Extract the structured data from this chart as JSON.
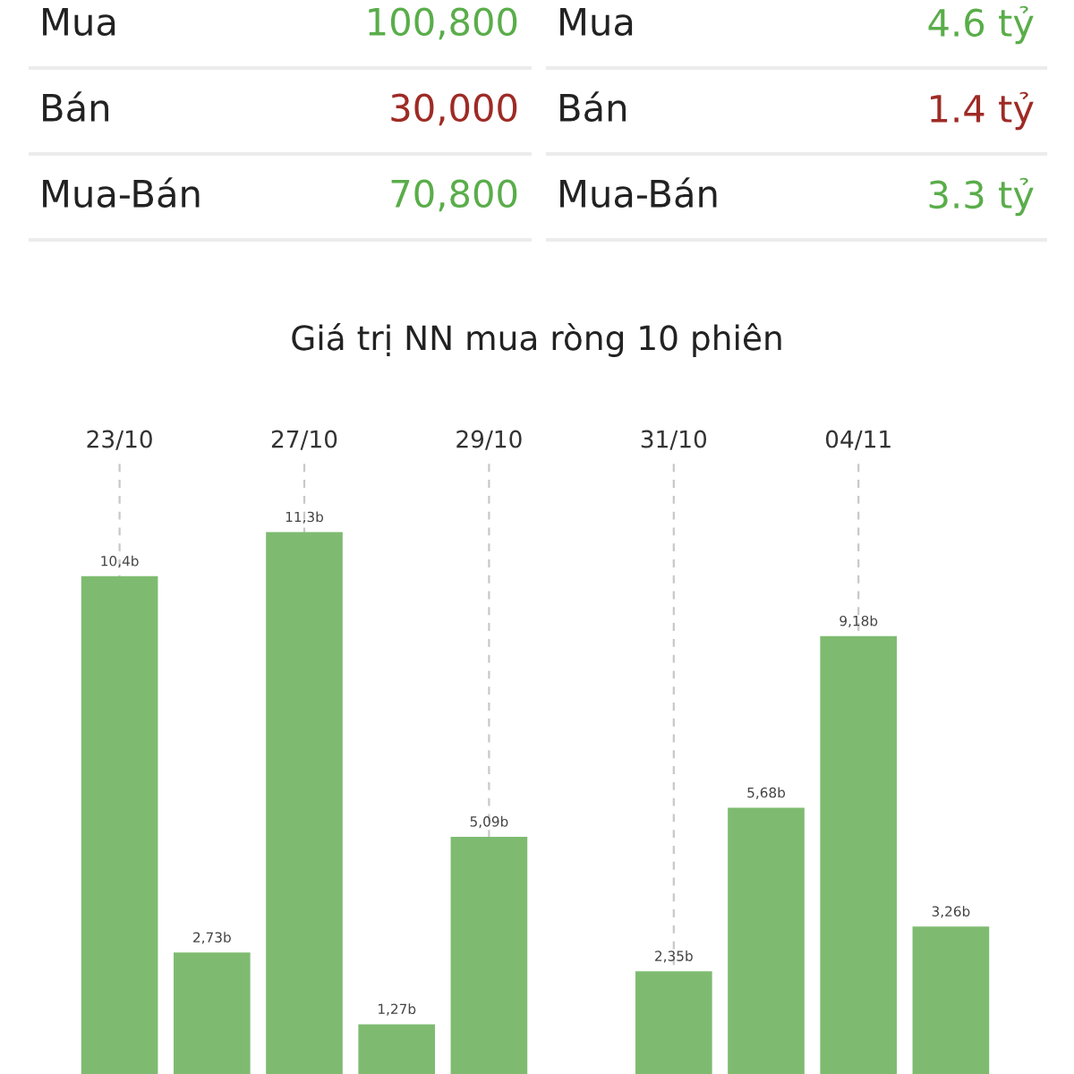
{
  "chart_data": [
    {
      "type": "other",
      "annotations": [
        "Mua",
        "100,800",
        "Mua",
        "4.6 tỷ",
        "Bán",
        "30,000",
        "Bán",
        "1.4 tỷ",
        "Mua-Bán",
        "70,800",
        "Mua-Bán",
        "3.3 tỷ"
      ]
    },
    {
      "type": "bar",
      "title": "Giá trị NN mua ròng 10 phiên",
      "categories": [
        "23/10",
        null,
        "27/10",
        null,
        "29/10",
        null,
        "31/10",
        null,
        "04/11",
        null
      ],
      "values": [
        10.4,
        2.73,
        11.3,
        1.27,
        5.09,
        null,
        2.35,
        5.68,
        9.18,
        3.26
      ],
      "value_labels": [
        "10,4b",
        "2,73b",
        "11,3b",
        "1,27b",
        "5,09b",
        null,
        "2,35b",
        "5,68b",
        "9,18b",
        "3,26b"
      ],
      "color": "#7ebb70",
      "grid": "x"
    }
  ]
}
